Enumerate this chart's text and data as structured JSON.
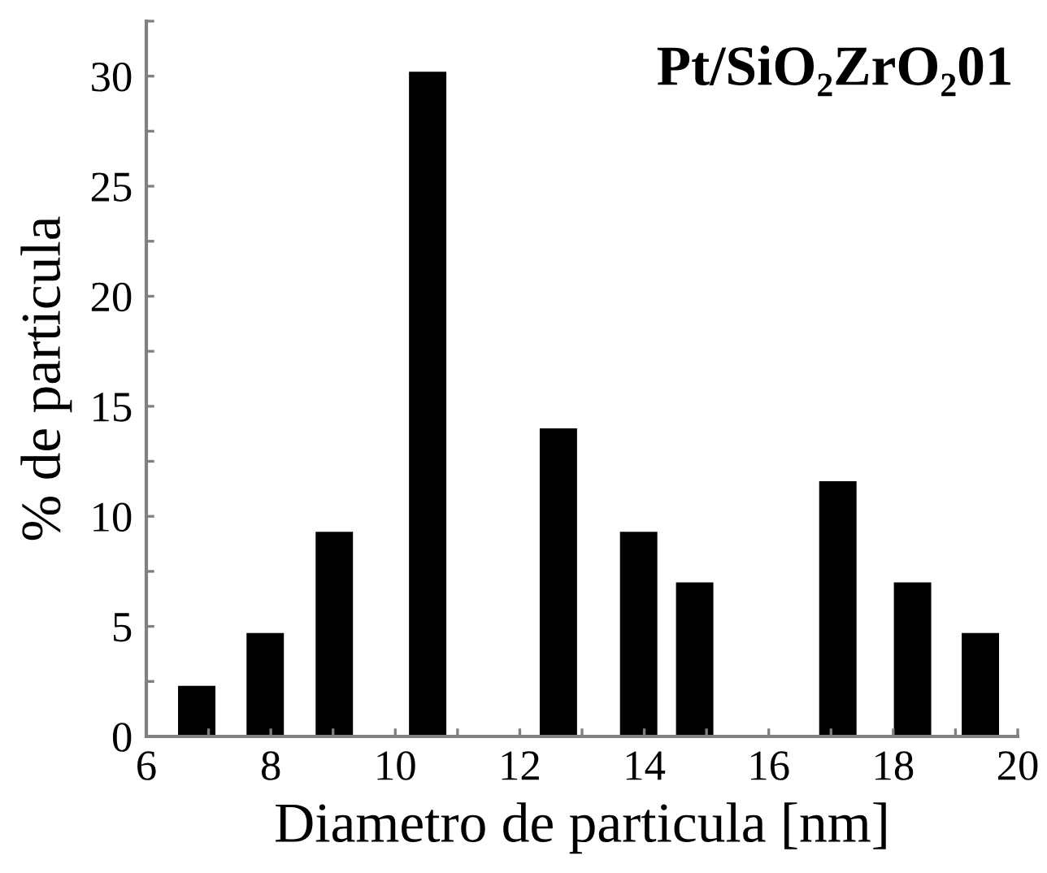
{
  "chart_data": {
    "type": "bar",
    "title": "Pt/SiO₂ZrO₂01",
    "xlabel": "Diametro de particula [nm]",
    "ylabel": "% de particula",
    "x": [
      6.81,
      7.91,
      9.02,
      10.52,
      12.62,
      13.91,
      14.81,
      17.11,
      18.31,
      19.4
    ],
    "values": [
      2.3,
      4.7,
      9.3,
      30.2,
      14.0,
      9.3,
      7.0,
      11.6,
      7.0,
      4.7
    ],
    "color": "#000000",
    "xlim": [
      6,
      20
    ],
    "ylim": [
      0,
      32.5
    ],
    "xticks": [
      6,
      {
        "value": 7,
        "label": null
      },
      8,
      {
        "value": 9,
        "label": null
      },
      10,
      {
        "value": 11,
        "label": null
      },
      12,
      {
        "value": 13,
        "label": null
      },
      14,
      {
        "value": 15,
        "label": null
      },
      16,
      {
        "value": 17,
        "label": null
      },
      18,
      {
        "value": 19,
        "label": null
      },
      20
    ],
    "yticks": [
      0,
      {
        "value": 2.5,
        "label": null
      },
      5,
      {
        "value": 7.5,
        "label": null
      },
      10,
      {
        "value": 12.5,
        "label": null
      },
      15,
      {
        "value": 17.5,
        "label": null
      },
      20,
      {
        "value": 22.5,
        "label": null
      },
      25,
      {
        "value": 27.5,
        "label": null
      },
      30,
      {
        "value": 32.5,
        "label": null
      }
    ],
    "grid": false,
    "legend": false
  }
}
